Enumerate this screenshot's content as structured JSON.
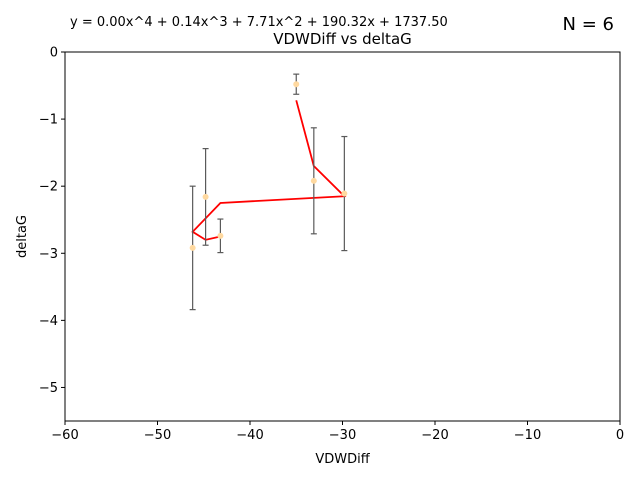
{
  "chart_data": {
    "type": "scatter",
    "title": "VDWDiff vs deltaG",
    "xlabel": "VDWDiff",
    "ylabel": "deltaG",
    "xlim": [
      -60,
      0
    ],
    "ylim": [
      -5.5,
      0
    ],
    "xticks": [
      -60,
      -50,
      -40,
      -30,
      -20,
      -10,
      0
    ],
    "yticks": [
      0,
      -1,
      -2,
      -3,
      -4,
      -5
    ],
    "xtick_labels": [
      "−60",
      "−50",
      "−40",
      "−30",
      "−20",
      "−10",
      "0"
    ],
    "ytick_labels": [
      "0",
      "−1",
      "−2",
      "−3",
      "−4",
      "−5"
    ],
    "grid": false,
    "equation": "y = 0.00x^4 + 0.14x^3 + 7.71x^2 + 190.32x + 1737.50",
    "count_label": "N = 6",
    "point_color": "#ffd9a0",
    "errorbar_color": "#5a5a5a",
    "fit_color": "#ff0000",
    "points": [
      {
        "x": -35.0,
        "y": -0.48,
        "err": 0.15
      },
      {
        "x": -33.1,
        "y": -1.92,
        "err": 0.79
      },
      {
        "x": -29.8,
        "y": -2.11,
        "err": 0.85
      },
      {
        "x": -44.8,
        "y": -2.16,
        "err": 0.72
      },
      {
        "x": -43.2,
        "y": -2.74,
        "err": 0.25
      },
      {
        "x": -46.2,
        "y": -2.92,
        "err": 0.92
      }
    ],
    "fit_line": {
      "x": [
        -35.0,
        -33.1,
        -29.8,
        -43.2,
        -46.2,
        -44.8,
        -43.2
      ],
      "y": [
        -0.72,
        -1.7,
        -2.15,
        -2.25,
        -2.68,
        -2.8,
        -2.75
      ]
    }
  }
}
